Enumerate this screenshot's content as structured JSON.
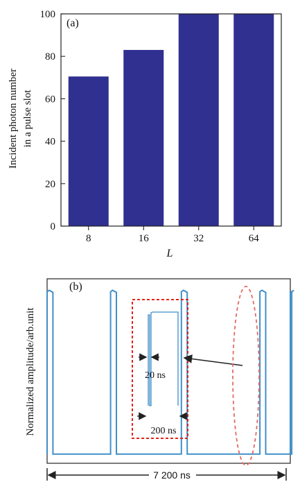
{
  "colors": {
    "bar": "#303090",
    "trace": "#3f8fc8",
    "annotation": "#e2231a",
    "ellipse": "#e46a63",
    "axis": "#222222"
  },
  "chart_data": [
    {
      "type": "bar",
      "panel_label": "(a)",
      "categories": [
        "8",
        "16",
        "32",
        "64"
      ],
      "values": [
        70.5,
        83,
        100,
        100
      ],
      "xlabel": "L",
      "ylabel_line1": "Incident photon number",
      "ylabel_line2": "in a pulse slot",
      "ylim": [
        0,
        100
      ],
      "yticks": [
        0,
        20,
        40,
        60,
        80,
        100
      ],
      "grid": false,
      "legend": "none"
    },
    {
      "type": "line",
      "panel_label": "(b)",
      "ylabel": "Normalized amplitude/arb.unit",
      "pulse_starts_relative": [
        0.0,
        0.261,
        0.552,
        0.875,
        1.006
      ],
      "pulse_width_relative": 0.024,
      "baseline_level": 0.05,
      "pulse_level": 0.93,
      "span_label": "7 200 ns",
      "inset_labels": {
        "narrow_width": "20 ns",
        "window_width": "200 ns"
      },
      "grid": false
    }
  ]
}
